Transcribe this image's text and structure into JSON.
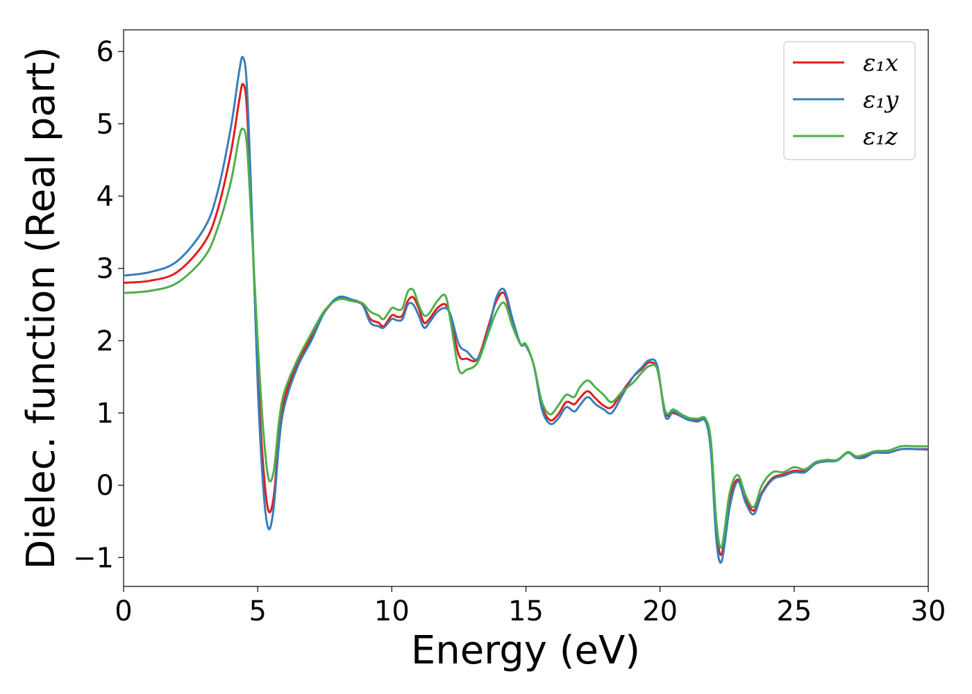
{
  "chart_data": {
    "type": "line",
    "title": "",
    "xlabel": "Energy (eV)",
    "ylabel": "Dielec. function (Real part)",
    "xlim": [
      0,
      30
    ],
    "ylim": [
      -1.4,
      6.3
    ],
    "xticks": [
      0,
      5,
      10,
      15,
      20,
      25,
      30
    ],
    "xtick_labels": [
      "0",
      "5",
      "10",
      "15",
      "20",
      "25",
      "30"
    ],
    "yticks": [
      -1,
      0,
      1,
      2,
      3,
      4,
      5,
      6
    ],
    "ytick_labels": [
      "−1",
      "0",
      "1",
      "2",
      "3",
      "4",
      "5",
      "6"
    ],
    "grid": false,
    "legend_position": "top-right",
    "x": [
      0,
      1,
      2,
      3,
      3.5,
      4,
      4.3,
      4.45,
      4.6,
      4.8,
      5.0,
      5.2,
      5.4,
      5.6,
      5.8,
      6.0,
      6.5,
      7.0,
      7.5,
      8.0,
      8.5,
      8.9,
      9.2,
      9.5,
      9.7,
      10.0,
      10.2,
      10.4,
      10.6,
      10.8,
      11.0,
      11.2,
      11.4,
      11.7,
      12.0,
      12.2,
      12.5,
      12.8,
      13.2,
      13.6,
      13.9,
      14.2,
      14.5,
      14.8,
      15.0,
      15.3,
      15.6,
      15.9,
      16.2,
      16.5,
      16.8,
      17.0,
      17.3,
      17.6,
      17.9,
      18.2,
      18.6,
      19.0,
      19.3,
      19.6,
      19.9,
      20.2,
      20.5,
      20.8,
      21.1,
      21.4,
      21.7,
      21.9,
      22.1,
      22.3,
      22.6,
      22.9,
      23.2,
      23.5,
      23.8,
      24.2,
      24.6,
      25.0,
      25.4,
      25.8,
      26.2,
      26.6,
      27.0,
      27.3,
      27.6,
      28.0,
      28.5,
      29.0,
      29.5,
      30.0
    ],
    "series": [
      {
        "name": "ε₁x",
        "color": "#e41a1c",
        "values": [
          2.8,
          2.83,
          2.95,
          3.35,
          3.8,
          4.6,
          5.3,
          5.55,
          5.2,
          3.5,
          1.6,
          0.3,
          -0.35,
          -0.15,
          0.7,
          1.2,
          1.7,
          2.05,
          2.4,
          2.58,
          2.55,
          2.5,
          2.3,
          2.25,
          2.2,
          2.35,
          2.33,
          2.35,
          2.55,
          2.6,
          2.45,
          2.25,
          2.3,
          2.45,
          2.5,
          2.3,
          1.8,
          1.75,
          1.75,
          2.2,
          2.55,
          2.65,
          2.25,
          1.95,
          1.93,
          1.65,
          1.1,
          0.9,
          0.98,
          1.15,
          1.12,
          1.2,
          1.3,
          1.2,
          1.1,
          1.08,
          1.3,
          1.5,
          1.6,
          1.7,
          1.6,
          1.0,
          1.0,
          0.95,
          0.9,
          0.9,
          0.9,
          0.5,
          -0.6,
          -0.95,
          -0.2,
          0.08,
          -0.2,
          -0.35,
          -0.1,
          0.1,
          0.15,
          0.2,
          0.2,
          0.3,
          0.35,
          0.35,
          0.45,
          0.4,
          0.4,
          0.45,
          0.45,
          0.5,
          0.5,
          0.5
        ]
      },
      {
        "name": "ε₁y",
        "color": "#377eb8",
        "values": [
          2.9,
          2.95,
          3.1,
          3.55,
          4.05,
          4.95,
          5.7,
          5.92,
          5.5,
          3.6,
          1.4,
          0.0,
          -0.6,
          -0.3,
          0.6,
          1.1,
          1.65,
          2.0,
          2.4,
          2.6,
          2.57,
          2.5,
          2.25,
          2.2,
          2.18,
          2.3,
          2.28,
          2.3,
          2.5,
          2.5,
          2.35,
          2.18,
          2.25,
          2.4,
          2.45,
          2.35,
          1.95,
          1.85,
          1.75,
          2.15,
          2.6,
          2.7,
          2.3,
          1.95,
          1.93,
          1.65,
          1.05,
          0.85,
          0.92,
          1.08,
          1.02,
          1.1,
          1.22,
          1.12,
          1.05,
          1.0,
          1.25,
          1.5,
          1.62,
          1.73,
          1.65,
          0.95,
          1.02,
          0.95,
          0.9,
          0.88,
          0.88,
          0.45,
          -0.75,
          -1.05,
          -0.3,
          0.05,
          -0.25,
          -0.4,
          -0.12,
          0.08,
          0.13,
          0.18,
          0.18,
          0.3,
          0.33,
          0.34,
          0.45,
          0.38,
          0.38,
          0.45,
          0.45,
          0.5,
          0.5,
          0.49
        ]
      },
      {
        "name": "ε₁z",
        "color": "#4daf4a",
        "values": [
          2.66,
          2.69,
          2.8,
          3.15,
          3.55,
          4.2,
          4.8,
          4.93,
          4.7,
          3.4,
          2.0,
          0.8,
          0.1,
          0.2,
          0.9,
          1.3,
          1.75,
          2.1,
          2.42,
          2.57,
          2.55,
          2.52,
          2.4,
          2.35,
          2.3,
          2.45,
          2.43,
          2.45,
          2.68,
          2.7,
          2.5,
          2.35,
          2.38,
          2.55,
          2.62,
          2.25,
          1.6,
          1.6,
          1.7,
          2.1,
          2.4,
          2.52,
          2.2,
          1.95,
          1.95,
          1.65,
          1.15,
          0.98,
          1.1,
          1.25,
          1.22,
          1.35,
          1.45,
          1.35,
          1.25,
          1.15,
          1.3,
          1.42,
          1.55,
          1.65,
          1.6,
          1.02,
          1.05,
          0.98,
          0.93,
          0.92,
          0.92,
          0.6,
          -0.5,
          -0.85,
          -0.1,
          0.14,
          -0.15,
          -0.3,
          0.0,
          0.18,
          0.18,
          0.25,
          0.22,
          0.32,
          0.35,
          0.35,
          0.46,
          0.4,
          0.42,
          0.47,
          0.48,
          0.54,
          0.54,
          0.54
        ]
      }
    ]
  }
}
